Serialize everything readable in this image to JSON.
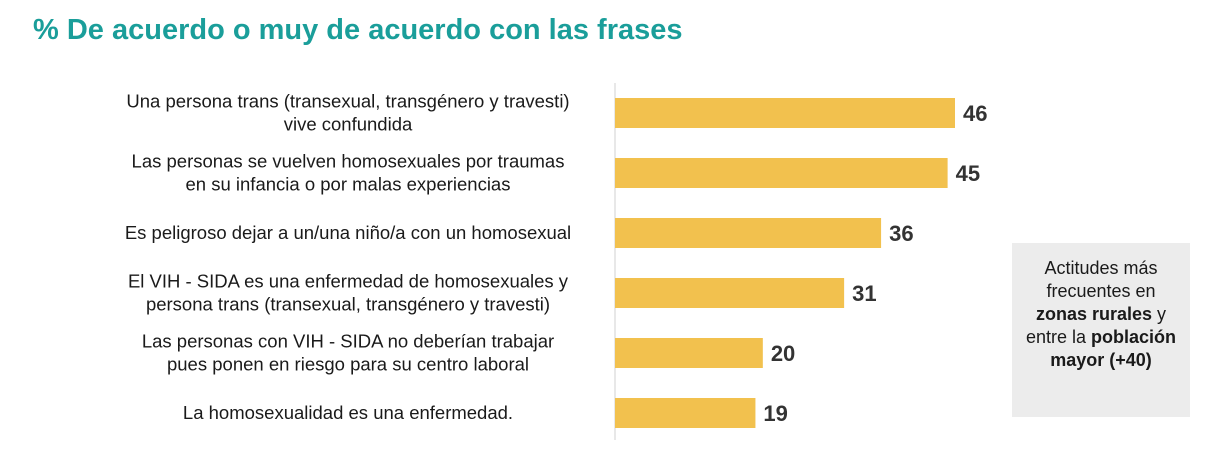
{
  "title": "% De acuerdo o muy de acuerdo con las frases",
  "colors": {
    "title": "#1a9e9a",
    "bar": "#f2c14e",
    "axis": "#d0d0d0",
    "note_bg": "#ececec"
  },
  "note": {
    "part1": "Actitudes más frecuentes en",
    "bold1": "zonas rurales",
    "part2": "y entre la",
    "bold2": "población mayor (+40)"
  },
  "chart_data": {
    "type": "bar",
    "orientation": "horizontal",
    "categories": [
      [
        "Una persona trans (transexual, transgénero y travesti)",
        "vive confundida"
      ],
      [
        "Las personas se vuelven homosexuales por traumas",
        "en su infancia o por malas experiencias"
      ],
      [
        "Es peligroso dejar a un/una niño/a con un homosexual"
      ],
      [
        "El VIH - SIDA es una enfermedad de homosexuales y",
        "persona trans (transexual, transgénero y travesti)"
      ],
      [
        "Las personas con VIH - SIDA no deberían trabajar",
        "pues ponen en riesgo para su centro laboral"
      ],
      [
        "La homosexualidad es una enfermedad."
      ]
    ],
    "values": [
      46,
      45,
      36,
      31,
      20,
      19
    ],
    "data_labels": [
      "46",
      "45",
      "36",
      "31",
      "20",
      "19"
    ],
    "xlim": [
      0,
      50
    ],
    "grid": false,
    "legend": "none"
  }
}
